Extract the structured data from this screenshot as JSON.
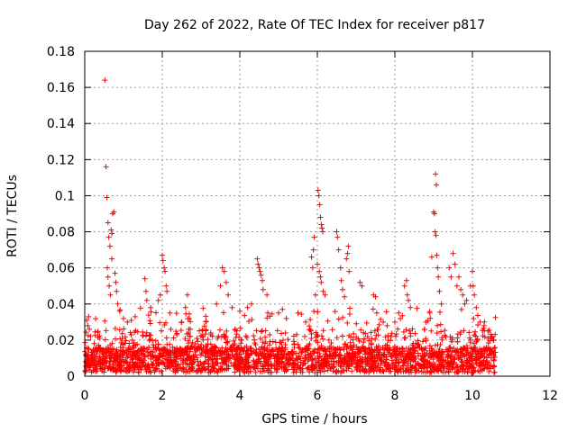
{
  "chart_data": {
    "type": "scatter",
    "title": "Day 262 of 2022, Rate Of TEC Index for receiver p817",
    "xlabel": "GPS time / hours",
    "ylabel": "ROTI / TECUs",
    "xlim": [
      0,
      12
    ],
    "ylim": [
      0,
      0.18
    ],
    "xticks": [
      "0",
      "2",
      "4",
      "6",
      "8",
      "10",
      "12"
    ],
    "yticks": [
      "0",
      "0.02",
      "0.04",
      "0.06",
      "0.08",
      "0.1",
      "0.12",
      "0.14",
      "0.16",
      "0.18"
    ],
    "grid": true,
    "marker": "+",
    "color": "#ff0000",
    "data_range_x": [
      0,
      10.6
    ],
    "series": [
      {
        "name": "ROTI",
        "points": [
          [
            0.05,
            0.031
          ],
          [
            0.08,
            0.028
          ],
          [
            0.1,
            0.033
          ],
          [
            0.12,
            0.026
          ],
          [
            0.15,
            0.022
          ],
          [
            0.52,
            0.164
          ],
          [
            0.55,
            0.116
          ],
          [
            0.57,
            0.099
          ],
          [
            0.6,
            0.085
          ],
          [
            0.62,
            0.077
          ],
          [
            0.65,
            0.072
          ],
          [
            0.68,
            0.081
          ],
          [
            0.7,
            0.079
          ],
          [
            0.72,
            0.09
          ],
          [
            0.75,
            0.091
          ],
          [
            0.58,
            0.06
          ],
          [
            0.6,
            0.055
          ],
          [
            0.63,
            0.05
          ],
          [
            0.66,
            0.045
          ],
          [
            0.7,
            0.065
          ],
          [
            0.78,
            0.057
          ],
          [
            0.8,
            0.052
          ],
          [
            0.82,
            0.047
          ],
          [
            0.85,
            0.04
          ],
          [
            0.9,
            0.036
          ],
          [
            1.0,
            0.032
          ],
          [
            1.1,
            0.03
          ],
          [
            1.2,
            0.031
          ],
          [
            1.3,
            0.033
          ],
          [
            1.55,
            0.054
          ],
          [
            1.58,
            0.047
          ],
          [
            1.6,
            0.042
          ],
          [
            1.7,
            0.038
          ],
          [
            1.9,
            0.042
          ],
          [
            1.95,
            0.045
          ],
          [
            2.0,
            0.067
          ],
          [
            2.02,
            0.064
          ],
          [
            2.05,
            0.06
          ],
          [
            2.07,
            0.058
          ],
          [
            2.1,
            0.05
          ],
          [
            2.12,
            0.047
          ],
          [
            2.2,
            0.035
          ],
          [
            2.5,
            0.03
          ],
          [
            2.6,
            0.038
          ],
          [
            2.65,
            0.045
          ],
          [
            2.7,
            0.032
          ],
          [
            3.4,
            0.04
          ],
          [
            3.5,
            0.05
          ],
          [
            3.55,
            0.06
          ],
          [
            3.6,
            0.058
          ],
          [
            3.65,
            0.052
          ],
          [
            3.7,
            0.045
          ],
          [
            3.8,
            0.038
          ],
          [
            4.0,
            0.036
          ],
          [
            4.2,
            0.038
          ],
          [
            4.3,
            0.04
          ],
          [
            4.45,
            0.065
          ],
          [
            4.47,
            0.062
          ],
          [
            4.5,
            0.06
          ],
          [
            4.52,
            0.058
          ],
          [
            4.55,
            0.056
          ],
          [
            4.58,
            0.053
          ],
          [
            4.6,
            0.048
          ],
          [
            4.7,
            0.045
          ],
          [
            5.0,
            0.035
          ],
          [
            5.2,
            0.032
          ],
          [
            5.5,
            0.035
          ],
          [
            5.7,
            0.03
          ],
          [
            5.85,
            0.066
          ],
          [
            5.88,
            0.06
          ],
          [
            5.9,
            0.07
          ],
          [
            5.92,
            0.077
          ],
          [
            6.02,
            0.103
          ],
          [
            6.04,
            0.1
          ],
          [
            6.06,
            0.095
          ],
          [
            6.08,
            0.088
          ],
          [
            6.1,
            0.084
          ],
          [
            6.12,
            0.082
          ],
          [
            6.14,
            0.08
          ],
          [
            6.0,
            0.062
          ],
          [
            6.05,
            0.058
          ],
          [
            6.08,
            0.055
          ],
          [
            6.1,
            0.052
          ],
          [
            6.15,
            0.047
          ],
          [
            6.2,
            0.045
          ],
          [
            5.95,
            0.045
          ],
          [
            6.5,
            0.08
          ],
          [
            6.52,
            0.077
          ],
          [
            6.55,
            0.07
          ],
          [
            6.6,
            0.06
          ],
          [
            6.62,
            0.053
          ],
          [
            6.65,
            0.048
          ],
          [
            6.7,
            0.044
          ],
          [
            6.75,
            0.065
          ],
          [
            6.8,
            0.072
          ],
          [
            6.78,
            0.068
          ],
          [
            6.82,
            0.058
          ],
          [
            7.1,
            0.052
          ],
          [
            7.15,
            0.05
          ],
          [
            7.45,
            0.045
          ],
          [
            7.5,
            0.044
          ],
          [
            7.7,
            0.03
          ],
          [
            7.8,
            0.028
          ],
          [
            8.0,
            0.03
          ],
          [
            8.1,
            0.035
          ],
          [
            8.25,
            0.05
          ],
          [
            8.3,
            0.053
          ],
          [
            8.32,
            0.045
          ],
          [
            8.35,
            0.042
          ],
          [
            8.4,
            0.038
          ],
          [
            8.8,
            0.03
          ],
          [
            8.9,
            0.035
          ],
          [
            8.95,
            0.066
          ],
          [
            9.0,
            0.091
          ],
          [
            9.02,
            0.09
          ],
          [
            9.04,
            0.08
          ],
          [
            9.06,
            0.078
          ],
          [
            9.05,
            0.112
          ],
          [
            9.07,
            0.106
          ],
          [
            9.08,
            0.067
          ],
          [
            9.1,
            0.06
          ],
          [
            9.12,
            0.055
          ],
          [
            9.15,
            0.047
          ],
          [
            9.2,
            0.04
          ],
          [
            9.4,
            0.06
          ],
          [
            9.45,
            0.055
          ],
          [
            9.5,
            0.068
          ],
          [
            9.55,
            0.062
          ],
          [
            9.6,
            0.05
          ],
          [
            9.65,
            0.055
          ],
          [
            9.7,
            0.048
          ],
          [
            9.75,
            0.045
          ],
          [
            9.8,
            0.04
          ],
          [
            9.85,
            0.042
          ],
          [
            9.95,
            0.05
          ],
          [
            10.0,
            0.058
          ],
          [
            10.02,
            0.05
          ],
          [
            10.05,
            0.045
          ],
          [
            10.1,
            0.038
          ],
          [
            10.2,
            0.03
          ],
          [
            10.3,
            0.028
          ],
          [
            10.4,
            0.025
          ],
          [
            10.5,
            0.022
          ],
          [
            10.55,
            0.02
          ]
        ]
      }
    ]
  }
}
